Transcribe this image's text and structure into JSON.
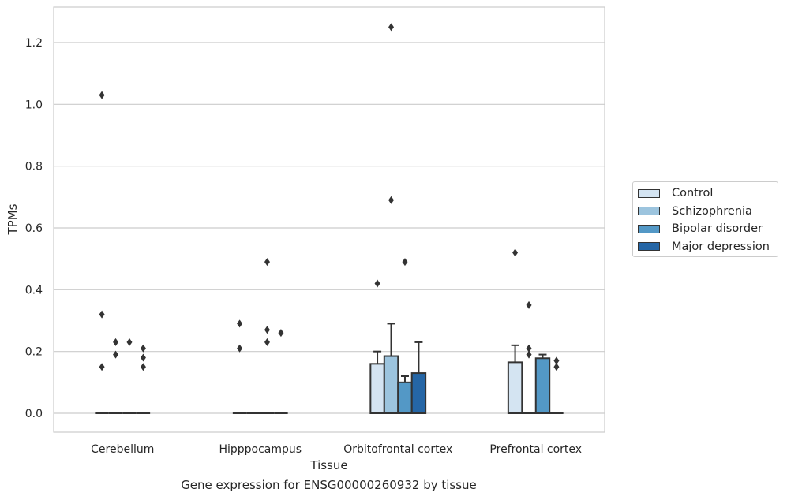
{
  "chart_data": {
    "type": "bar",
    "caption": "Gene expression for ENSG00000260932 by tissue",
    "xlabel": "Tissue",
    "ylabel": "TPMs",
    "ylim": [
      -0.06,
      1.31
    ],
    "yticks": [
      0.0,
      0.2,
      0.4,
      0.6,
      0.8,
      1.0,
      1.2
    ],
    "ytick_labels": [
      "0.0",
      "0.2",
      "0.4",
      "0.6",
      "0.8",
      "1.0",
      "1.2"
    ],
    "categories": [
      "Cerebellum",
      "Hipppocampus",
      "Orbitofrontal cortex",
      "Prefrontal cortex"
    ],
    "grid": true,
    "legend_position": "right",
    "series": [
      {
        "name": "Control",
        "color": "#d4e4f2",
        "values": [
          0.0,
          0.0,
          0.16,
          0.165
        ],
        "err_upper": [
          null,
          null,
          0.2,
          0.22
        ]
      },
      {
        "name": "Schizophrenia",
        "color": "#9cc4de",
        "values": [
          0.0,
          0.0,
          0.185,
          0.0
        ],
        "err_upper": [
          null,
          null,
          0.29,
          null
        ]
      },
      {
        "name": "Bipolar disorder",
        "color": "#5398c6",
        "values": [
          0.0,
          0.0,
          0.1,
          0.178
        ],
        "err_upper": [
          null,
          null,
          0.12,
          0.19
        ]
      },
      {
        "name": "Major depression",
        "color": "#2566a6",
        "values": [
          0.0,
          0.0,
          0.13,
          0.0
        ],
        "err_upper": [
          null,
          null,
          0.23,
          null
        ]
      }
    ],
    "outliers": [
      {
        "category": 0,
        "series": 0,
        "values": [
          1.03,
          0.32,
          0.15
        ]
      },
      {
        "category": 0,
        "series": 1,
        "values": [
          0.23,
          0.19
        ]
      },
      {
        "category": 0,
        "series": 2,
        "values": [
          0.23
        ]
      },
      {
        "category": 0,
        "series": 3,
        "values": [
          0.21,
          0.18,
          0.15
        ]
      },
      {
        "category": 1,
        "series": 0,
        "values": [
          0.29,
          0.21
        ]
      },
      {
        "category": 1,
        "series": 2,
        "values": [
          0.49,
          0.27,
          0.23
        ]
      },
      {
        "category": 1,
        "series": 3,
        "values": [
          0.26
        ]
      },
      {
        "category": 2,
        "series": 0,
        "values": [
          0.42
        ]
      },
      {
        "category": 2,
        "series": 1,
        "values": [
          1.25,
          0.69
        ]
      },
      {
        "category": 2,
        "series": 2,
        "values": [
          0.49
        ]
      },
      {
        "category": 3,
        "series": 0,
        "values": [
          0.52
        ]
      },
      {
        "category": 3,
        "series": 1,
        "values": [
          0.35,
          0.21,
          0.19
        ]
      },
      {
        "category": 3,
        "series": 3,
        "values": [
          0.17,
          0.15
        ]
      }
    ]
  }
}
